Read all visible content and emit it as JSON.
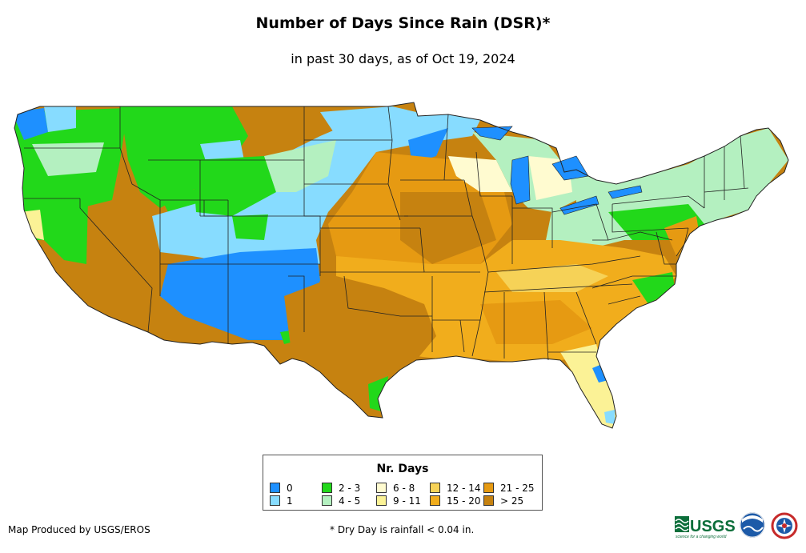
{
  "title": "Number of Days Since Rain (DSR)*",
  "subtitle": "in past 30 days, as of Oct 19, 2024",
  "legend": {
    "title": "Nr. Days",
    "items": [
      {
        "label": "0",
        "color": "#1e90ff"
      },
      {
        "label": "1",
        "color": "#87dcff"
      },
      {
        "label": "2 - 3",
        "color": "#22d81a"
      },
      {
        "label": "4 - 5",
        "color": "#b4f0c0"
      },
      {
        "label": "6 - 8",
        "color": "#fffbd0"
      },
      {
        "label": "9 - 11",
        "color": "#fbf296"
      },
      {
        "label": "12 - 14",
        "color": "#f6d257"
      },
      {
        "label": "15 - 20",
        "color": "#f1ad1c"
      },
      {
        "label": "21 - 25",
        "color": "#e69a12"
      },
      {
        "label": "> 25",
        "color": "#c68210"
      }
    ]
  },
  "footer": {
    "produced_by": "Map Produced by USGS/EROS",
    "footnote": "* Dry Day is rainfall < 0.04 in."
  },
  "logos": {
    "usgs": "USGS",
    "usgs_tagline": "science for a changing world"
  },
  "colors": {
    "water": "#1e90ff",
    "boundary": "#222222"
  }
}
